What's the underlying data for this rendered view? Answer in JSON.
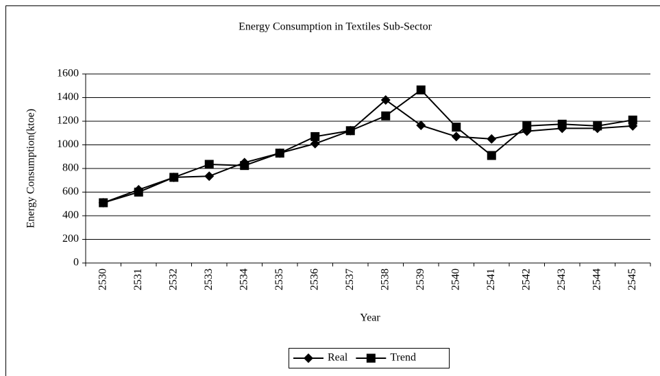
{
  "chart_data": {
    "type": "line",
    "title": "Energy Consumption in Textiles Sub-Sector",
    "x_label": "Year",
    "y_label": "Energy Consumption(ktoe)",
    "categories": [
      "2530",
      "2531",
      "2532",
      "2533",
      "2534",
      "2535",
      "2536",
      "2537",
      "2538",
      "2539",
      "2540",
      "2541",
      "2542",
      "2543",
      "2544",
      "2545"
    ],
    "series": [
      {
        "name": "Real",
        "color": "#000000",
        "marker": "diamond",
        "values": [
          510,
          620,
          725,
          735,
          850,
          930,
          1010,
          1120,
          1380,
          1165,
          1070,
          1050,
          1115,
          1140,
          1140,
          1160
        ]
      },
      {
        "name": "Trend",
        "color": "#000000",
        "marker": "square",
        "values": [
          510,
          600,
          725,
          835,
          825,
          930,
          1070,
          1120,
          1245,
          1465,
          1150,
          910,
          1160,
          1175,
          1160,
          1210
        ]
      }
    ],
    "ylim": [
      0,
      1600
    ],
    "yticks": [
      0,
      200,
      400,
      600,
      800,
      1000,
      1200,
      1400,
      1600
    ],
    "grid": true,
    "legend": "bottom"
  }
}
